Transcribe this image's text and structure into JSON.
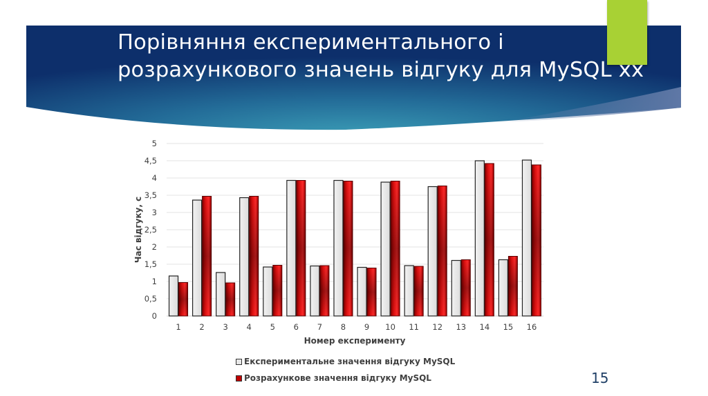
{
  "slide": {
    "title_lines": [
      "Порівняння експериментального і",
      "розрахункового значень відгуку для MySQL xx"
    ],
    "page_number": "15",
    "colors": {
      "banner_dark": "#0d2f6b",
      "banner_light": "#2f8aa8",
      "accent_green": "#a8d134",
      "series_experimental": "#e8e8e8",
      "series_calculated": "#c00000"
    }
  },
  "chart_data": {
    "type": "bar",
    "title": "",
    "xlabel": "Номер експерименту",
    "ylabel": "Час відгуку, с",
    "ylim": [
      0,
      5
    ],
    "yticks": [
      "0",
      "0,5",
      "1",
      "1,5",
      "2",
      "2,5",
      "3",
      "3,5",
      "4",
      "4,5",
      "5"
    ],
    "grid": true,
    "legend_position": "bottom",
    "categories": [
      "1",
      "2",
      "3",
      "4",
      "5",
      "6",
      "7",
      "8",
      "9",
      "10",
      "11",
      "12",
      "13",
      "14",
      "15",
      "16"
    ],
    "series": [
      {
        "name": "Експериментальне значення відгуку MySQL",
        "color": "#e8e8e8",
        "values": [
          1.16,
          3.36,
          1.26,
          3.43,
          1.42,
          3.93,
          1.45,
          3.93,
          1.41,
          3.88,
          1.46,
          3.75,
          1.61,
          4.5,
          1.63,
          4.52
        ]
      },
      {
        "name": "Розрахункове значення відгуку MySQL",
        "color": "#c00000",
        "values": [
          0.97,
          3.47,
          0.96,
          3.47,
          1.47,
          3.93,
          1.46,
          3.91,
          1.39,
          3.91,
          1.44,
          3.77,
          1.63,
          4.42,
          1.73,
          4.38
        ]
      }
    ]
  }
}
